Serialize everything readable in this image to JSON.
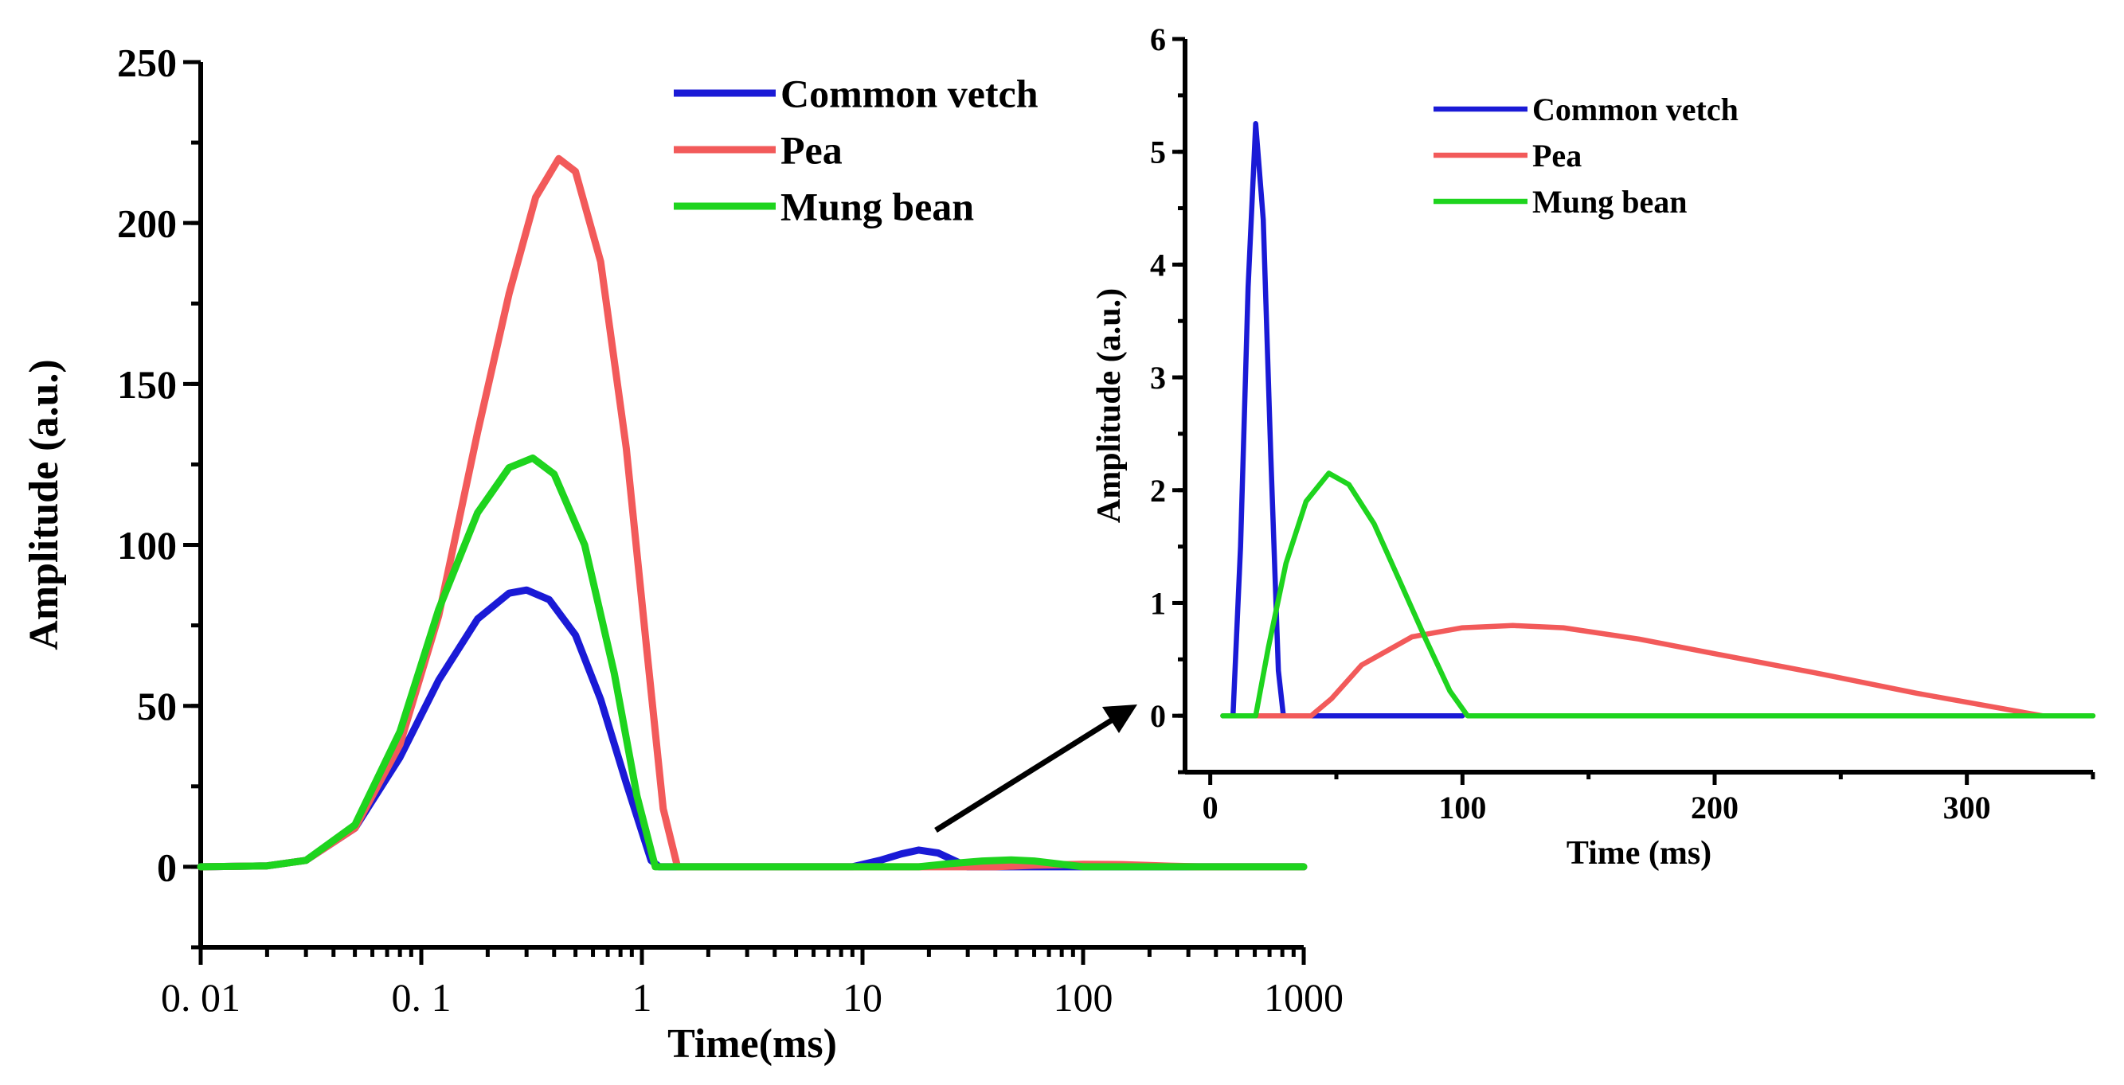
{
  "chart_data": [
    {
      "type": "line",
      "title": "",
      "xlabel": "Time(ms)",
      "ylabel": "Amplitude (a.u.)",
      "xscale": "log",
      "xlim": [
        0.01,
        1000
      ],
      "ylim": [
        -25,
        250
      ],
      "xticks": [
        0.01,
        0.1,
        1,
        10,
        100,
        1000
      ],
      "xtick_labels": [
        "0. 01",
        "0. 1",
        "1",
        "10",
        "100",
        "1000"
      ],
      "yticks": [
        0,
        50,
        100,
        150,
        200,
        250
      ],
      "ytick_labels": [
        "0",
        "50",
        "100",
        "150",
        "200",
        "250"
      ],
      "legend_position": "top-right",
      "series": [
        {
          "name": "Common vetch",
          "color": "#1a1ad6",
          "points": [
            [
              0.01,
              0
            ],
            [
              0.02,
              0.3
            ],
            [
              0.03,
              2
            ],
            [
              0.05,
              12
            ],
            [
              0.08,
              34
            ],
            [
              0.12,
              58
            ],
            [
              0.18,
              77
            ],
            [
              0.25,
              85
            ],
            [
              0.3,
              86
            ],
            [
              0.38,
              83
            ],
            [
              0.5,
              72
            ],
            [
              0.65,
              52
            ],
            [
              0.85,
              26
            ],
            [
              1.1,
              2
            ],
            [
              1.2,
              0
            ],
            [
              9,
              0
            ],
            [
              12,
              2
            ],
            [
              15,
              4
            ],
            [
              18,
              5.2
            ],
            [
              22,
              4.3
            ],
            [
              28,
              1
            ],
            [
              30,
              0
            ],
            [
              1000,
              0
            ]
          ]
        },
        {
          "name": "Pea",
          "color": "#f25a5a",
          "points": [
            [
              0.01,
              0
            ],
            [
              0.02,
              0.3
            ],
            [
              0.03,
              2
            ],
            [
              0.05,
              12
            ],
            [
              0.08,
              38
            ],
            [
              0.12,
              78
            ],
            [
              0.18,
              135
            ],
            [
              0.25,
              178
            ],
            [
              0.33,
              208
            ],
            [
              0.42,
              220
            ],
            [
              0.5,
              216
            ],
            [
              0.65,
              188
            ],
            [
              0.85,
              130
            ],
            [
              1.05,
              68
            ],
            [
              1.25,
              18
            ],
            [
              1.45,
              0
            ],
            [
              40,
              0
            ],
            [
              60,
              0.5
            ],
            [
              100,
              0.8
            ],
            [
              150,
              0.7
            ],
            [
              250,
              0.2
            ],
            [
              330,
              0
            ],
            [
              1000,
              0
            ]
          ]
        },
        {
          "name": "Mung bean",
          "color": "#1ed41e",
          "points": [
            [
              0.01,
              0
            ],
            [
              0.02,
              0.3
            ],
            [
              0.03,
              2
            ],
            [
              0.05,
              13
            ],
            [
              0.08,
              42
            ],
            [
              0.12,
              80
            ],
            [
              0.18,
              110
            ],
            [
              0.25,
              124
            ],
            [
              0.32,
              127
            ],
            [
              0.4,
              122
            ],
            [
              0.55,
              100
            ],
            [
              0.75,
              60
            ],
            [
              0.95,
              22
            ],
            [
              1.15,
              0
            ],
            [
              18,
              0
            ],
            [
              25,
              1
            ],
            [
              35,
              1.8
            ],
            [
              47,
              2.15
            ],
            [
              60,
              1.8
            ],
            [
              80,
              0.8
            ],
            [
              100,
              0
            ],
            [
              1000,
              0
            ]
          ]
        }
      ]
    },
    {
      "type": "line",
      "title": "",
      "xlabel": "Time (ms)",
      "ylabel": "Amplitude (a.u.)",
      "xscale": "linear",
      "xlim": [
        -10,
        350
      ],
      "ylim": [
        -0.5,
        6
      ],
      "xticks": [
        0,
        100,
        200,
        300
      ],
      "xtick_labels": [
        "0",
        "100",
        "200",
        "300"
      ],
      "yticks": [
        0,
        1,
        2,
        3,
        4,
        5,
        6
      ],
      "ytick_labels": [
        "0",
        "1",
        "2",
        "3",
        "4",
        "5",
        "6"
      ],
      "legend_position": "top-right",
      "series": [
        {
          "name": "Common vetch",
          "color": "#1a1ad6",
          "points": [
            [
              5,
              0
            ],
            [
              9,
              0
            ],
            [
              12,
              1.5
            ],
            [
              15,
              3.8
            ],
            [
              18,
              5.25
            ],
            [
              21,
              4.4
            ],
            [
              24,
              2.3
            ],
            [
              27,
              0.4
            ],
            [
              29,
              0
            ],
            [
              100,
              0
            ]
          ]
        },
        {
          "name": "Pea",
          "color": "#f25a5a",
          "points": [
            [
              5,
              0
            ],
            [
              40,
              0
            ],
            [
              48,
              0.15
            ],
            [
              60,
              0.45
            ],
            [
              80,
              0.7
            ],
            [
              100,
              0.78
            ],
            [
              120,
              0.8
            ],
            [
              140,
              0.78
            ],
            [
              170,
              0.68
            ],
            [
              200,
              0.55
            ],
            [
              240,
              0.38
            ],
            [
              280,
              0.2
            ],
            [
              310,
              0.08
            ],
            [
              330,
              0
            ],
            [
              350,
              0
            ]
          ]
        },
        {
          "name": "Mung bean",
          "color": "#1ed41e",
          "points": [
            [
              5,
              0
            ],
            [
              18,
              0
            ],
            [
              23,
              0.6
            ],
            [
              30,
              1.35
            ],
            [
              38,
              1.9
            ],
            [
              47,
              2.15
            ],
            [
              55,
              2.05
            ],
            [
              65,
              1.7
            ],
            [
              75,
              1.2
            ],
            [
              85,
              0.7
            ],
            [
              95,
              0.22
            ],
            [
              102,
              0
            ],
            [
              350,
              0
            ]
          ]
        }
      ]
    }
  ],
  "colors": {
    "arrow": "#000000",
    "axes": "#000000"
  }
}
